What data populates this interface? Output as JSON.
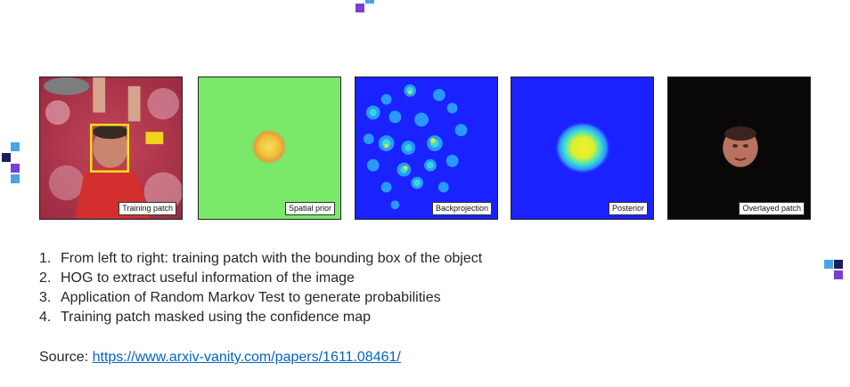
{
  "figure": {
    "panels": [
      {
        "caption": "Training patch"
      },
      {
        "caption": "Spatial prior"
      },
      {
        "caption": "Backprojection"
      },
      {
        "caption": "Posterior"
      },
      {
        "caption": "Overlayed patch"
      }
    ]
  },
  "steps": [
    {
      "num": "1.",
      "text": "From left to right: training patch with the bounding box of the object"
    },
    {
      "num": "2.",
      "text": "HOG to extract useful information of the image"
    },
    {
      "num": "3.",
      "text": "Application of Random Markov Test to generate probabilities"
    },
    {
      "num": "4.",
      "text": "Training patch masked using the confidence map"
    }
  ],
  "source": {
    "label": "Source: ",
    "link_text": "https://www.arxiv-vanity.com/papers/1611.08461/"
  },
  "colors": {
    "accent_purple": "#7b3fd1",
    "accent_blue": "#4aa3e8",
    "accent_navy": "#1a1f5c",
    "link": "#0563c1"
  }
}
